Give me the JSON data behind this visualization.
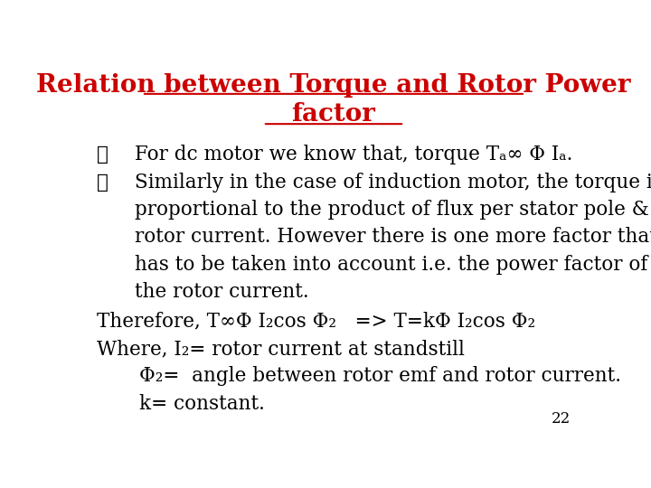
{
  "title_line1": "Relation between Torque and Rotor Power",
  "title_line2": "factor",
  "title_color": "#CC0000",
  "bg_color": "#FFFFFF",
  "text_color": "#000000",
  "page_number": "22",
  "bullet1": "For dc motor we know that, torque Tₐ∞ Φ Iₐ.",
  "bullet2_line1": "Similarly in the case of induction motor, the torque is",
  "bullet2_line2": "proportional to the product of flux per stator pole &",
  "bullet2_line3": "rotor current. However there is one more factor that",
  "bullet2_line4": "has to be taken into account i.e. the power factor of",
  "bullet2_line5": "the rotor current.",
  "line_therefore": "Therefore, T∞Φ I₂cos Φ₂   => T=kΦ I₂cos Φ₂",
  "line_where": "Where, I₂= rotor current at standstill",
  "line_phi": "Φ₂=  angle between rotor emf and rotor current.",
  "line_k": "k= constant.",
  "font_family": "DejaVu Serif",
  "title_fontsize": 20,
  "body_fontsize": 15.5
}
